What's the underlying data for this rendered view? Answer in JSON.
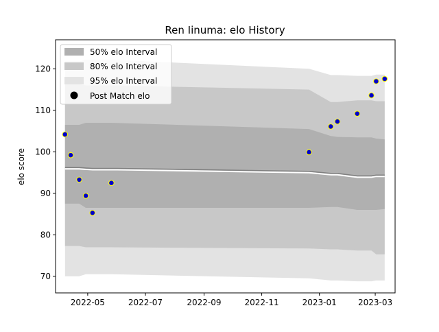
{
  "chart_data": {
    "type": "line",
    "title": "Ren Iinuma: elo History",
    "xlabel": "",
    "ylabel": "elo score",
    "xlim": [
      "2022-03-28",
      "2023-03-22"
    ],
    "ylim": [
      66,
      127
    ],
    "x_ticks": [
      "2022-05",
      "2022-07",
      "2022-09",
      "2022-11",
      "2023-01",
      "2023-03"
    ],
    "y_ticks": [
      70,
      80,
      90,
      100,
      110,
      120
    ],
    "legend": {
      "placement": "top-left",
      "entries": [
        "50% elo Interval",
        "80% elo Interval",
        "95% elo Interval",
        "Post Match elo"
      ]
    },
    "grid": false,
    "colors": {
      "band50": "#b0b0b0",
      "band80": "#c8c8c8",
      "band95": "#e3e3e3",
      "mean_line": "#808080",
      "point_fill": "#0000cc",
      "point_edge": "#ffff00"
    },
    "series": [
      {
        "name": "Post Match elo",
        "kind": "scatter",
        "x": [
          "2022-04-07",
          "2022-04-13",
          "2022-04-22",
          "2022-04-29",
          "2022-05-06",
          "2022-05-26",
          "2022-12-21",
          "2023-01-13",
          "2023-01-20",
          "2023-02-10",
          "2023-02-25",
          "2023-03-02",
          "2023-03-11"
        ],
        "y": [
          104.2,
          99.2,
          93.3,
          89.4,
          85.3,
          92.5,
          99.9,
          106.1,
          107.3,
          109.2,
          113.6,
          117.0,
          117.6
        ]
      },
      {
        "name": "",
        "kind": "line",
        "x": [
          "2022-04-07",
          "2022-04-22",
          "2022-05-06",
          "2022-06-01",
          "2022-12-21",
          "2023-01-13",
          "2023-01-20",
          "2023-02-10",
          "2023-02-25",
          "2023-03-02",
          "2023-03-11"
        ],
        "y": [
          96.2,
          96.2,
          96.0,
          96.0,
          95.3,
          94.8,
          94.8,
          94.2,
          94.2,
          94.4,
          94.4
        ]
      }
    ],
    "bands": {
      "x": [
        "2022-04-07",
        "2022-04-13",
        "2022-04-22",
        "2022-04-29",
        "2022-05-06",
        "2022-05-26",
        "2022-12-21",
        "2023-01-13",
        "2023-01-20",
        "2023-02-10",
        "2023-02-25",
        "2023-03-02",
        "2023-03-11"
      ],
      "p50_low": [
        87.5,
        87.5,
        87.5,
        86.5,
        86.5,
        86.5,
        86.5,
        86.7,
        86.7,
        86.0,
        86.0,
        86.0,
        86.2
      ],
      "p50_high": [
        106.5,
        106.5,
        106.5,
        107.0,
        107.0,
        107.0,
        105.5,
        103.8,
        103.6,
        103.5,
        103.5,
        103.2,
        103.0
      ],
      "p80_low": [
        77.3,
        77.3,
        77.3,
        77.0,
        77.0,
        77.0,
        76.7,
        76.5,
        76.5,
        76.2,
        76.2,
        75.3,
        75.3
      ],
      "p80_high": [
        116.3,
        116.3,
        116.3,
        116.0,
        116.0,
        116.0,
        115.0,
        112.0,
        112.0,
        112.4,
        112.4,
        112.2,
        112.2
      ],
      "p95_low": [
        70.0,
        70.0,
        70.0,
        70.5,
        70.5,
        70.5,
        69.5,
        69.0,
        69.0,
        68.8,
        68.8,
        69.0,
        69.0
      ],
      "p95_high": [
        121.8,
        121.8,
        121.8,
        122.2,
        122.2,
        122.2,
        120.0,
        118.5,
        118.5,
        118.3,
        118.3,
        118.6,
        118.6
      ]
    }
  }
}
